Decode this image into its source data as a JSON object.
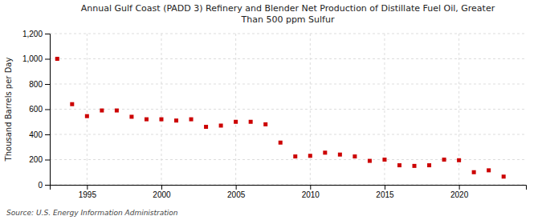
{
  "chart_data": {
    "type": "scatter",
    "title": "Annual Gulf Coast (PADD 3) Refinery and Blender Net Production of Distillate Fuel Oil, Greater\nThan 500 ppm Sulfur",
    "ylabel": "Thousand Barrels per Day",
    "source": "Source: U.S. Energy Information Administration",
    "color": "#cc0000",
    "marker": "square",
    "grid": true,
    "x": [
      1993,
      1994,
      1995,
      1996,
      1997,
      1998,
      1999,
      2000,
      2001,
      2002,
      2003,
      2004,
      2005,
      2006,
      2007,
      2008,
      2009,
      2010,
      2011,
      2012,
      2013,
      2014,
      2015,
      2016,
      2017,
      2018,
      2019,
      2020,
      2021,
      2022,
      2023
    ],
    "values": [
      1000,
      640,
      545,
      590,
      590,
      540,
      520,
      520,
      510,
      520,
      460,
      470,
      500,
      500,
      480,
      335,
      225,
      230,
      255,
      240,
      225,
      190,
      200,
      155,
      150,
      155,
      200,
      195,
      100,
      115,
      65
    ],
    "xlim": [
      1992.5,
      2024.5
    ],
    "xticks": [
      1995,
      2000,
      2005,
      2010,
      2015,
      2020
    ],
    "ylim": [
      0,
      1200
    ],
    "yticks": [
      0,
      200,
      400,
      600,
      800,
      {
        "value": 1000,
        "label": "1,000"
      },
      {
        "value": 1200,
        "label": "1,200"
      }
    ]
  }
}
